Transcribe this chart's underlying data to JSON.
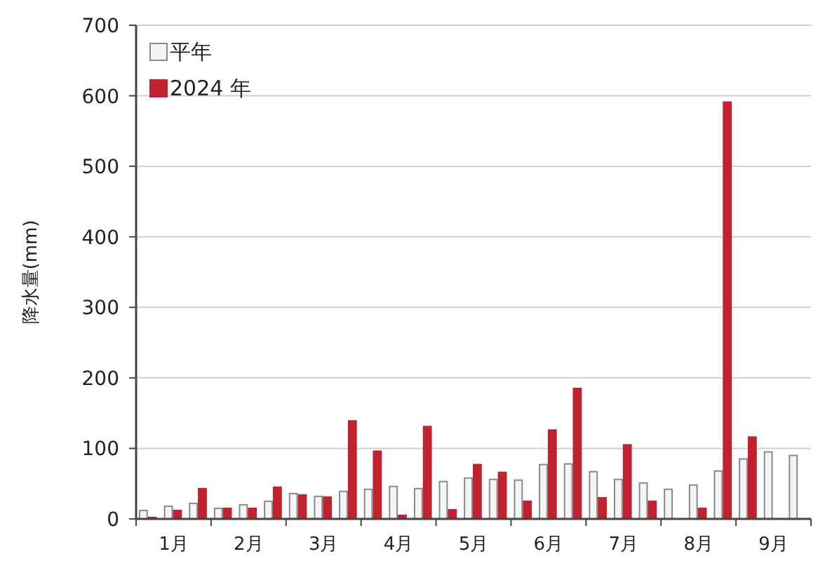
{
  "chart_data": {
    "type": "bar",
    "ylabel": "降水量(mm)",
    "categories": [
      null,
      "1月",
      null,
      null,
      "2月",
      null,
      null,
      "3月",
      null,
      null,
      "4月",
      null,
      null,
      "5月",
      null,
      null,
      "6月",
      null,
      null,
      "7月",
      null,
      null,
      "8月",
      null,
      null,
      "9月",
      null
    ],
    "series": [
      {
        "name": "平年",
        "color": "#f4f4f4",
        "values": [
          12,
          18,
          22,
          15,
          20,
          25,
          36,
          32,
          39,
          42,
          46,
          43,
          53,
          58,
          56,
          55,
          77,
          78,
          67,
          56,
          51,
          42,
          48,
          68,
          85,
          95,
          90
        ]
      },
      {
        "name": "2024 年",
        "color": "#c0222f",
        "values": [
          2,
          12,
          43,
          15,
          15,
          45,
          34,
          31,
          139,
          96,
          5,
          131,
          13,
          77,
          66,
          25,
          126,
          185,
          30,
          105,
          25,
          null,
          15,
          591,
          116,
          null,
          null
        ]
      }
    ],
    "ylim": [
      0,
      700
    ],
    "yticks": [
      0,
      100,
      200,
      300,
      400,
      500,
      600,
      700
    ],
    "grid": "y",
    "legend": "top left"
  }
}
